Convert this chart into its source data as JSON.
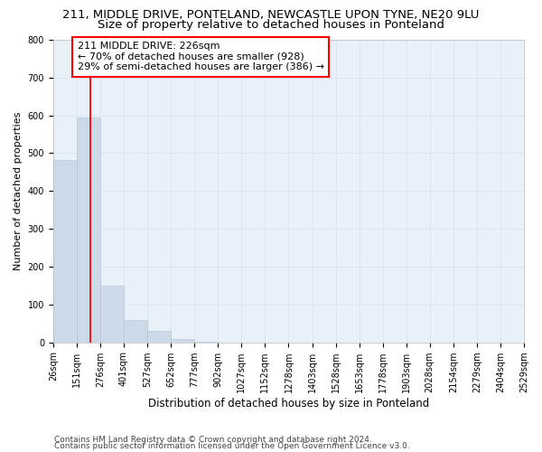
{
  "title1": "211, MIDDLE DRIVE, PONTELAND, NEWCASTLE UPON TYNE, NE20 9LU",
  "title2": "Size of property relative to detached houses in Ponteland",
  "xlabel": "Distribution of detached houses by size in Ponteland",
  "ylabel": "Number of detached properties",
  "bar_values": [
    483,
    594,
    149,
    60,
    30,
    8,
    2,
    0,
    0,
    0,
    0,
    0,
    0,
    0,
    0,
    0,
    0,
    0,
    0,
    0
  ],
  "bin_edges": [
    26,
    151,
    276,
    401,
    527,
    652,
    777,
    902,
    1027,
    1152,
    1278,
    1403,
    1528,
    1653,
    1778,
    1903,
    2028,
    2154,
    2279,
    2404,
    2529
  ],
  "bar_color": "#ccd9e8",
  "bar_edge_color": "#b0c4d8",
  "grid_color": "#d8e4f0",
  "bg_color": "#e8f0f8",
  "red_line_x": 226,
  "annotation_text": "211 MIDDLE DRIVE: 226sqm\n← 70% of detached houses are smaller (928)\n29% of semi-detached houses are larger (386) →",
  "ylim": [
    0,
    800
  ],
  "yticks": [
    0,
    100,
    200,
    300,
    400,
    500,
    600,
    700,
    800
  ],
  "footnote1": "Contains HM Land Registry data © Crown copyright and database right 2024.",
  "footnote2": "Contains public sector information licensed under the Open Government Licence v3.0.",
  "title1_fontsize": 9.5,
  "title2_fontsize": 9.5,
  "xlabel_fontsize": 8.5,
  "ylabel_fontsize": 8,
  "tick_fontsize": 7,
  "annotation_fontsize": 8,
  "footnote_fontsize": 6.5
}
